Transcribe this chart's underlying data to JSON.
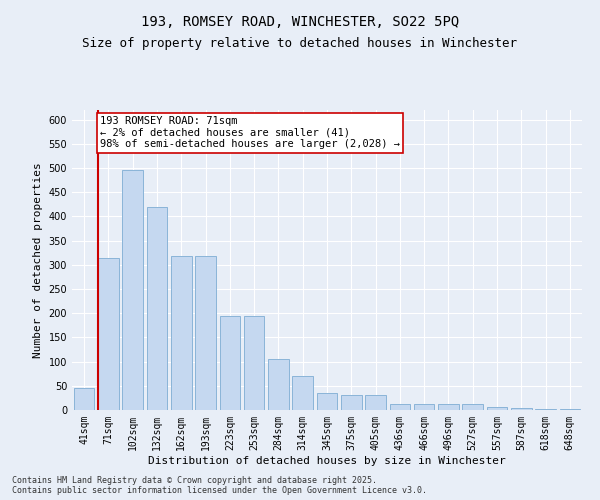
{
  "title_line1": "193, ROMSEY ROAD, WINCHESTER, SO22 5PQ",
  "title_line2": "Size of property relative to detached houses in Winchester",
  "xlabel": "Distribution of detached houses by size in Winchester",
  "ylabel": "Number of detached properties",
  "categories": [
    "41sqm",
    "71sqm",
    "102sqm",
    "132sqm",
    "162sqm",
    "193sqm",
    "223sqm",
    "253sqm",
    "284sqm",
    "314sqm",
    "345sqm",
    "375sqm",
    "405sqm",
    "436sqm",
    "466sqm",
    "496sqm",
    "527sqm",
    "557sqm",
    "587sqm",
    "618sqm",
    "648sqm"
  ],
  "values": [
    45,
    315,
    495,
    420,
    318,
    318,
    195,
    195,
    105,
    70,
    36,
    32,
    30,
    13,
    12,
    13,
    12,
    7,
    5,
    2,
    2
  ],
  "bar_color": "#c5d8f0",
  "bar_edge_color": "#8ab4d8",
  "highlight_index": 1,
  "highlight_line_color": "#cc0000",
  "annotation_text": "193 ROMSEY ROAD: 71sqm\n← 2% of detached houses are smaller (41)\n98% of semi-detached houses are larger (2,028) →",
  "annotation_box_color": "#ffffff",
  "annotation_box_edge_color": "#cc0000",
  "ylim": [
    0,
    620
  ],
  "yticks": [
    0,
    50,
    100,
    150,
    200,
    250,
    300,
    350,
    400,
    450,
    500,
    550,
    600
  ],
  "background_color": "#e8eef7",
  "plot_bg_color": "#e8eef7",
  "footer_text": "Contains HM Land Registry data © Crown copyright and database right 2025.\nContains public sector information licensed under the Open Government Licence v3.0.",
  "title_fontsize": 10,
  "subtitle_fontsize": 9,
  "axis_label_fontsize": 8,
  "tick_fontsize": 7,
  "annotation_fontsize": 7.5,
  "footer_fontsize": 6
}
